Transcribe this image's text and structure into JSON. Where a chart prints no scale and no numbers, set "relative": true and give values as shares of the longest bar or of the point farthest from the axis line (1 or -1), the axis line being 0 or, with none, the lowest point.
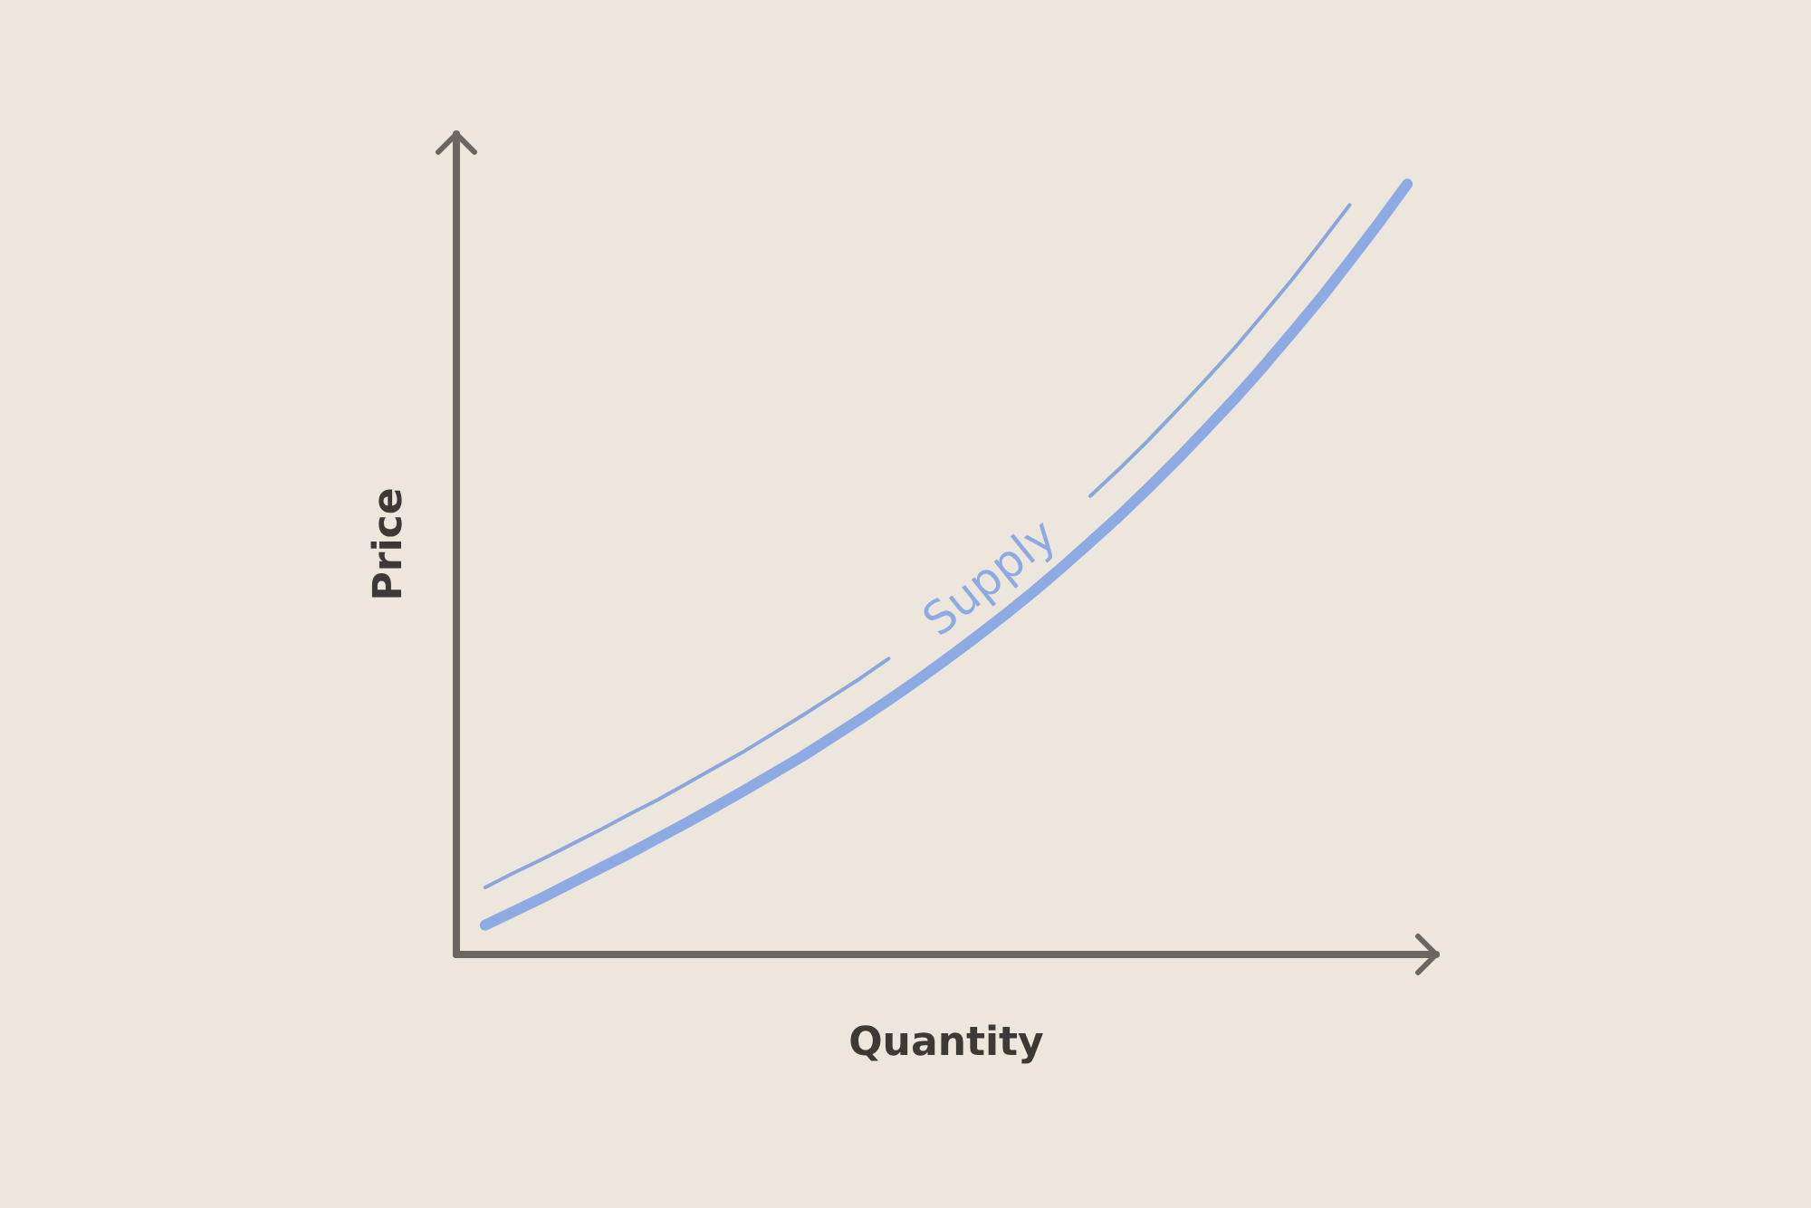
{
  "chart_data": {
    "type": "line",
    "relative": true,
    "xlabel": "Quantity",
    "ylabel": "Price",
    "marker": "none",
    "categories": [
      null,
      null,
      null,
      null,
      null,
      null,
      null,
      null,
      null,
      null,
      null,
      null,
      null,
      null,
      null,
      null,
      null,
      null,
      null,
      null,
      null,
      null,
      null,
      null,
      null,
      null,
      null,
      null,
      null,
      null,
      null,
      null,
      null,
      null,
      null
    ],
    "series": [
      {
        "name": "Supply",
        "color": "#8eaae2",
        "values": [
          null,
          0.038,
          0.056,
          0.074,
          0.093,
          0.112,
          0.131,
          0.151,
          0.171,
          0.192,
          0.213,
          0.235,
          0.257,
          0.281,
          0.305,
          0.33,
          0.356,
          0.383,
          0.411,
          0.44,
          0.47,
          0.502,
          0.535,
          0.569,
          0.605,
          0.642,
          0.681,
          0.721,
          0.763,
          0.807,
          0.852,
          0.9,
          0.949,
          1,
          null
        ]
      },
      {
        "color": "#8ca6dc",
        "values": [
          null,
          0.087,
          0.106,
          0.124,
          0.143,
          0.162,
          0.182,
          0.201,
          0.222,
          0.243,
          0.264,
          0.287,
          0.31,
          0.334,
          0.358,
          0.384,
          null,
          null,
          null,
          null,
          null,
          null,
          0.595,
          0.63,
          0.667,
          0.706,
          0.746,
          0.787,
          0.831,
          0.876,
          0.924,
          0.973,
          null,
          null,
          null
        ]
      }
    ]
  }
}
